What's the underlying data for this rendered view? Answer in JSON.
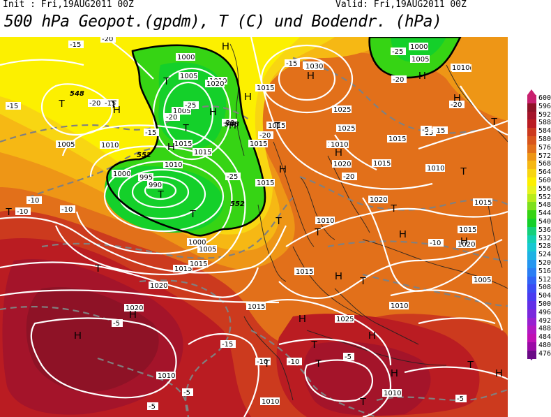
{
  "header": {
    "init": "Init : Fri,19AUG2011 00Z",
    "valid": "Valid: Fri,19AUG2011 00Z",
    "title": "500 hPa Geopot.(gpdm), T (C) und Bodendr. (hPa)"
  },
  "legend": {
    "levels": [
      {
        "label": "600",
        "color": "#c8206e"
      },
      {
        "label": "596",
        "color": "#8e1226"
      },
      {
        "label": "592",
        "color": "#a4142a"
      },
      {
        "label": "588",
        "color": "#ba1c22"
      },
      {
        "label": "584",
        "color": "#cc3a1e"
      },
      {
        "label": "580",
        "color": "#d8561c"
      },
      {
        "label": "576",
        "color": "#e2701a"
      },
      {
        "label": "572",
        "color": "#ee9616"
      },
      {
        "label": "568",
        "color": "#f6b814"
      },
      {
        "label": "564",
        "color": "#f8d612"
      },
      {
        "label": "560",
        "color": "#fcf000"
      },
      {
        "label": "556",
        "color": "#e6f41e"
      },
      {
        "label": "552",
        "color": "#b8ec1a"
      },
      {
        "label": "548",
        "color": "#7ee01c"
      },
      {
        "label": "544",
        "color": "#36d414"
      },
      {
        "label": "540",
        "color": "#14d02a"
      },
      {
        "label": "536",
        "color": "#14d07c"
      },
      {
        "label": "532",
        "color": "#12d0b2"
      },
      {
        "label": "528",
        "color": "#16c8d2"
      },
      {
        "label": "524",
        "color": "#1eb2e4"
      },
      {
        "label": "520",
        "color": "#2496f0"
      },
      {
        "label": "516",
        "color": "#2a7ef4"
      },
      {
        "label": "512",
        "color": "#3064f6"
      },
      {
        "label": "508",
        "color": "#3a4cf4"
      },
      {
        "label": "504",
        "color": "#4a3cf0"
      },
      {
        "label": "500",
        "color": "#6230e8"
      },
      {
        "label": "496",
        "color": "#7a28dc"
      },
      {
        "label": "492",
        "color": "#9820d0"
      },
      {
        "label": "488",
        "color": "#b218c2"
      },
      {
        "label": "484",
        "color": "#c010b4"
      },
      {
        "label": "480",
        "color": "#9a0aa6"
      },
      {
        "label": "476",
        "color": "#6a0a86"
      }
    ]
  },
  "map": {
    "pressure_labels": [
      {
        "text": "1000"
      },
      {
        "text": "1000"
      },
      {
        "text": "1005"
      },
      {
        "text": "1005"
      },
      {
        "text": "1010"
      },
      {
        "text": "1010"
      },
      {
        "text": "1015"
      },
      {
        "text": "1015"
      },
      {
        "text": "1020"
      },
      {
        "text": "1025"
      },
      {
        "text": "1030"
      },
      {
        "text": "1015"
      },
      {
        "text": "1010"
      },
      {
        "text": "1000"
      },
      {
        "text": "995"
      },
      {
        "text": "990"
      },
      {
        "text": "1000"
      },
      {
        "text": "1005"
      },
      {
        "text": "1005"
      },
      {
        "text": "1010"
      },
      {
        "text": "1015"
      },
      {
        "text": "1020"
      },
      {
        "text": "1020"
      },
      {
        "text": "1025"
      },
      {
        "text": "1010"
      },
      {
        "text": "1010"
      },
      {
        "text": "1015"
      },
      {
        "text": "1015"
      },
      {
        "text": "1020"
      },
      {
        "text": "1015"
      },
      {
        "text": "1015"
      },
      {
        "text": "1020"
      },
      {
        "text": "1010"
      },
      {
        "text": "1010"
      },
      {
        "text": "1015"
      },
      {
        "text": "1015"
      },
      {
        "text": "1015"
      },
      {
        "text": "1015"
      },
      {
        "text": "1015"
      },
      {
        "text": "1020"
      },
      {
        "text": "1010"
      },
      {
        "text": "1010"
      },
      {
        "text": "1010"
      },
      {
        "text": "1005"
      },
      {
        "text": "1005"
      },
      {
        "text": "1015"
      },
      {
        "text": "1025"
      },
      {
        "text": "1010"
      },
      {
        "text": "1015"
      },
      {
        "text": "1020"
      }
    ],
    "temp_labels": [
      {
        "text": "-15"
      },
      {
        "text": "-20"
      },
      {
        "text": "-15"
      },
      {
        "text": "-15"
      },
      {
        "text": "-20"
      },
      {
        "text": "-15"
      },
      {
        "text": "-20"
      },
      {
        "text": "-25"
      },
      {
        "text": "-25"
      },
      {
        "text": "-20"
      },
      {
        "text": "-25"
      },
      {
        "text": "-15"
      },
      {
        "text": "-20"
      },
      {
        "text": "-20"
      },
      {
        "text": "-15"
      },
      {
        "text": "-20"
      },
      {
        "text": "-15"
      },
      {
        "text": "-20"
      },
      {
        "text": "-10"
      },
      {
        "text": "-10"
      },
      {
        "text": "-10"
      },
      {
        "text": "-10"
      },
      {
        "text": "-5"
      },
      {
        "text": "-10"
      },
      {
        "text": "-15"
      },
      {
        "text": "-10"
      },
      {
        "text": "-5"
      },
      {
        "text": "-5"
      },
      {
        "text": "-5"
      },
      {
        "text": "-5"
      },
      {
        "text": "-5"
      }
    ],
    "geo_labels": [
      {
        "text": "548"
      },
      {
        "text": "552"
      },
      {
        "text": "552"
      },
      {
        "text": "548"
      }
    ],
    "high_markers": [
      {
        "text": "H"
      },
      {
        "text": "H"
      },
      {
        "text": "H"
      },
      {
        "text": "H"
      },
      {
        "text": "H"
      },
      {
        "text": "H"
      },
      {
        "text": "H"
      },
      {
        "text": "H"
      },
      {
        "text": "H"
      },
      {
        "text": "H"
      },
      {
        "text": "H"
      },
      {
        "text": "H"
      },
      {
        "text": "H"
      },
      {
        "text": "H"
      },
      {
        "text": "H"
      },
      {
        "text": "H"
      },
      {
        "text": "H"
      },
      {
        "text": "H"
      },
      {
        "text": "H"
      },
      {
        "text": "H"
      }
    ],
    "low_markers": [
      {
        "text": "T"
      },
      {
        "text": "T"
      },
      {
        "text": "T"
      },
      {
        "text": "T"
      },
      {
        "text": "T"
      },
      {
        "text": "T"
      },
      {
        "text": "T"
      },
      {
        "text": "T"
      },
      {
        "text": "T"
      },
      {
        "text": "T"
      },
      {
        "text": "T"
      },
      {
        "text": "T"
      },
      {
        "text": "T"
      },
      {
        "text": "T"
      },
      {
        "text": "T"
      },
      {
        "text": "T"
      },
      {
        "text": "T"
      },
      {
        "text": "T"
      },
      {
        "text": "T"
      },
      {
        "text": "T"
      }
    ]
  }
}
